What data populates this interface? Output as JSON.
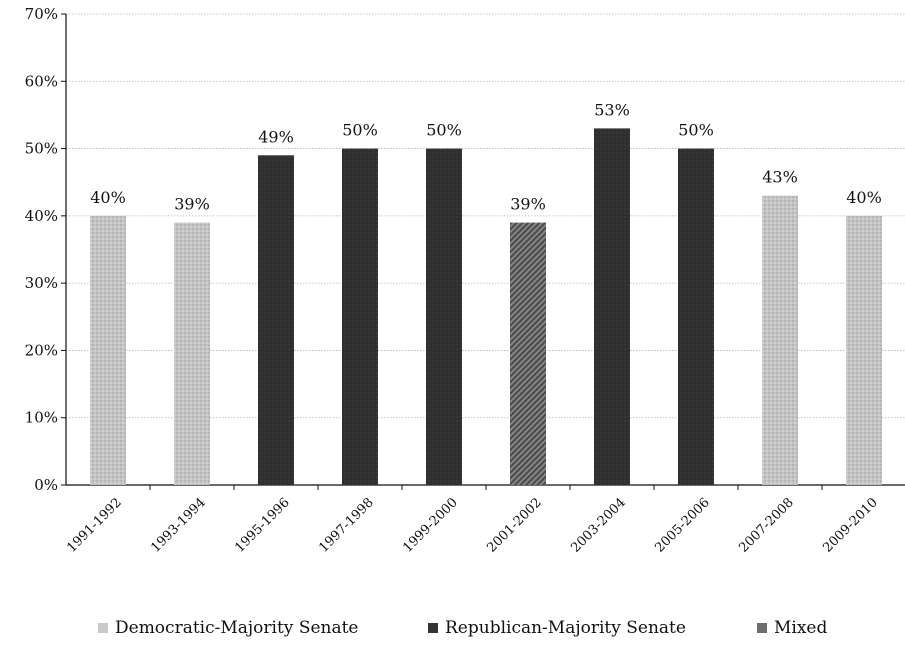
{
  "chart_data": {
    "type": "bar",
    "categories": [
      "1991-1992",
      "1993-1994",
      "1995-1996",
      "1997-1998",
      "1999-2000",
      "2001-2002",
      "2003-2004",
      "2005-2006",
      "2007-2008",
      "2009-2010"
    ],
    "values": [
      40,
      39,
      49,
      50,
      50,
      39,
      53,
      50,
      43,
      40
    ],
    "data_labels": [
      "40%",
      "39%",
      "49%",
      "50%",
      "50%",
      "39%",
      "53%",
      "50%",
      "43%",
      "40%"
    ],
    "groups": [
      "Democratic-Majority Senate",
      "Democratic-Majority Senate",
      "Republican-Majority Senate",
      "Republican-Majority Senate",
      "Republican-Majority Senate",
      "Mixed",
      "Republican-Majority Senate",
      "Republican-Majority Senate",
      "Democratic-Majority Senate",
      "Democratic-Majority Senate"
    ],
    "y_ticks": [
      "0%",
      "10%",
      "20%",
      "30%",
      "40%",
      "50%",
      "60%",
      "70%"
    ],
    "ylim": [
      0,
      70
    ],
    "grid": true,
    "legend_position": "bottom",
    "legend": [
      {
        "name": "Democratic-Majority Senate",
        "color": "#c9c9c9"
      },
      {
        "name": "Republican-Majority Senate",
        "color": "#333333"
      },
      {
        "name": "Mixed",
        "color": "#5c5c5c"
      }
    ]
  }
}
